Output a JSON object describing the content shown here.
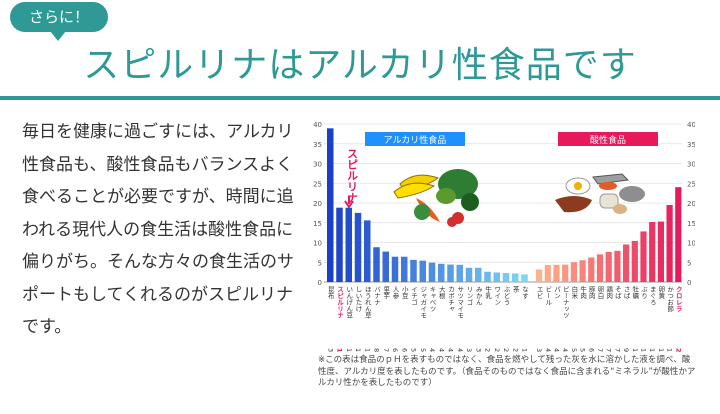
{
  "badge": "さらに！",
  "headline": "スピルリナはアルカリ性食品です",
  "intro": "毎日を健康に過ごすには、アルカリ性食品も、酸性食品もバランスよく食べることが必要ですが、時間に追われる現代人の食生活は酸性食品に偏りがち。そんな方々の食生活のサポートもしてくれるのがスピルリナです。",
  "colors": {
    "accent": "#2f9a95",
    "alkaline": "#3b5bdb",
    "acid": "#e6195a"
  },
  "chart_data": {
    "type": "bar",
    "ylim": [
      0,
      40
    ],
    "yticks": [
      0,
      5,
      10,
      15,
      20,
      25,
      30,
      35,
      40
    ],
    "groups": [
      {
        "label": "アルカリ性食品",
        "label_color": "#1e90ff"
      },
      {
        "label": "酸性食品",
        "label_color": "#e6195a"
      }
    ],
    "annotation": "スピルリナ",
    "alkaline": [
      {
        "name": "昆布",
        "value": 38.9,
        "value_label": "38.9"
      },
      {
        "name": "スピルリナ",
        "value": 18.82,
        "value_label": "18.82",
        "highlight": true
      },
      {
        "name": "いんげん豆",
        "value": 18.8,
        "value_label": "18.8"
      },
      {
        "name": "しいたけ",
        "value": 17.5,
        "value_label": "17.5"
      },
      {
        "name": "ほうれん草",
        "value": 15.6,
        "value_label": "15.6"
      },
      {
        "name": "バナナ",
        "value": 8.8,
        "value_label": "8.8"
      },
      {
        "name": "里芋",
        "value": 7.7,
        "value_label": "7.7"
      },
      {
        "name": "人参",
        "value": 6.4,
        "value_label": "6.4"
      },
      {
        "name": "小豆",
        "value": 6.4,
        "value_label": "6.4"
      },
      {
        "name": "イチゴ",
        "value": 5.6,
        "value_label": "5.6"
      },
      {
        "name": "ジャガイモ",
        "value": 5.4,
        "value_label": "5.4"
      },
      {
        "name": "キャベツ",
        "value": 4.9,
        "value_label": "4.9"
      },
      {
        "name": "大根",
        "value": 4.6,
        "value_label": "4.6"
      },
      {
        "name": "カボチャ",
        "value": 4.4,
        "value_label": "4.4"
      },
      {
        "name": "サツマイモ",
        "value": 4.35,
        "value_label": "4.35"
      },
      {
        "name": "リンゴ",
        "value": 3.6,
        "value_label": "3.6"
      },
      {
        "name": "みかん",
        "value": 3.6,
        "value_label": "3.6"
      },
      {
        "name": "牛乳",
        "value": 2.6,
        "value_label": "2.6"
      },
      {
        "name": "ワイン",
        "value": 2.4,
        "value_label": "2.4"
      },
      {
        "name": "ぶどう",
        "value": 2.25,
        "value_label": "2.25"
      },
      {
        "name": "茶",
        "value": 2.16,
        "value_label": "2.16"
      },
      {
        "name": "なす",
        "value": 1.93,
        "value_label": "1.93"
      }
    ],
    "acid": [
      {
        "name": "エビ",
        "value": 3.18,
        "value_label": "3.18"
      },
      {
        "name": "ビール",
        "value": 4.3,
        "value_label": "4.3"
      },
      {
        "name": "パン",
        "value": 4.35,
        "value_label": "4.35"
      },
      {
        "name": "ピーナッツ",
        "value": 4.4,
        "value_label": "4.4"
      },
      {
        "name": "白米",
        "value": 5.0,
        "value_label": "5.0"
      },
      {
        "name": "牛肉",
        "value": 5.5,
        "value_label": "5.5"
      },
      {
        "name": "豚肉",
        "value": 6.2,
        "value_label": "6.2"
      },
      {
        "name": "卵白",
        "value": 7.0,
        "value_label": "7.0"
      },
      {
        "name": "鶏肉",
        "value": 7.6,
        "value_label": "7.6"
      },
      {
        "name": "そば",
        "value": 7.9,
        "value_label": "7.9"
      },
      {
        "name": "さば",
        "value": 9.5,
        "value_label": "9.5"
      },
      {
        "name": "牡蠣",
        "value": 10.4,
        "value_label": "10.4"
      },
      {
        "name": "ぶり",
        "value": 12.8,
        "value_label": "12.8"
      },
      {
        "name": "まぐろ",
        "value": 15.2,
        "value_label": "15.2"
      },
      {
        "name": "卵黄",
        "value": 15.3,
        "value_label": "15.3"
      },
      {
        "name": "かつお節",
        "value": 19.5,
        "value_label": "19.5"
      },
      {
        "name": "クロレラ",
        "value": 24.0,
        "value_label": "24",
        "highlight": true
      }
    ]
  },
  "footnote": "※この表は食品のｐＨを表すものではなく、食品を燃やして残った灰を水に溶かした液を調べ、酸性度、アルカリ度を表したものです。（食品そのものではなく食品に含まれる“ミネラル”が酸性かアルカリ性かを表したものです）"
}
